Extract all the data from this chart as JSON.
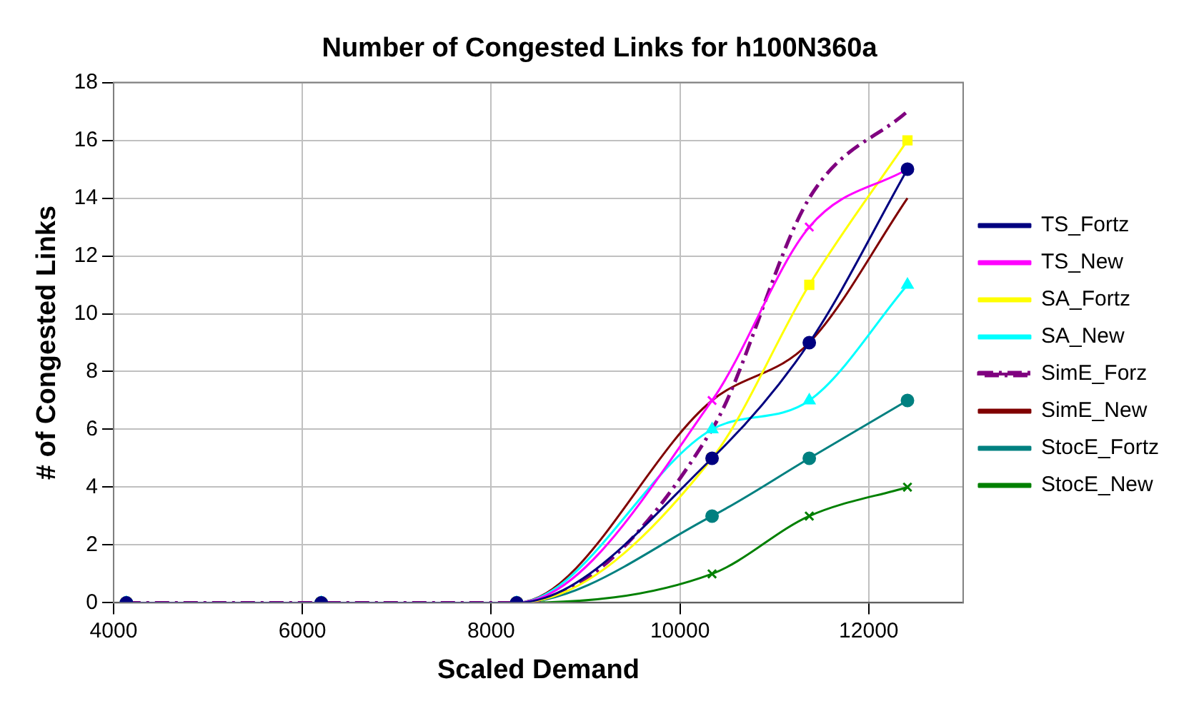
{
  "chart_data": {
    "type": "line",
    "title": "Number of Congested Links for h100N360a",
    "xlabel": "Scaled Demand",
    "ylabel": "# of Congested Links",
    "x": [
      4135,
      6200,
      8270,
      10340,
      11370,
      12410
    ],
    "xlim": [
      4000,
      13000
    ],
    "xticks": [
      4000,
      6000,
      8000,
      10000,
      12000
    ],
    "ylim": [
      0,
      18
    ],
    "yticks": [
      0,
      2,
      4,
      6,
      8,
      10,
      12,
      14,
      16,
      18
    ],
    "grid": true,
    "legend": "right",
    "series": [
      {
        "name": "TS_Fortz",
        "color": "#000080",
        "marker": "circle",
        "values": [
          0,
          0,
          0,
          5,
          9,
          15
        ]
      },
      {
        "name": "TS_New",
        "color": "#ff00ff",
        "marker": "cross",
        "values": [
          0,
          0,
          0,
          7,
          13,
          15
        ]
      },
      {
        "name": "SA_Fortz",
        "color": "#ffff00",
        "marker": "square",
        "values": [
          0,
          0,
          0,
          5,
          11,
          16
        ]
      },
      {
        "name": "SA_New",
        "color": "#00ffff",
        "marker": "triangle",
        "values": [
          0,
          0,
          0,
          6,
          7,
          11
        ]
      },
      {
        "name": "SimE_Forz",
        "color": "#800080",
        "marker": "none",
        "line_style": "dashdot",
        "values": [
          0,
          0,
          0,
          6,
          14,
          17
        ]
      },
      {
        "name": "SimE_New",
        "color": "#800000",
        "marker": "none",
        "values": [
          0,
          0,
          0,
          7,
          9,
          14
        ]
      },
      {
        "name": "StocE_Fortz",
        "color": "#008080",
        "marker": "circle",
        "values": [
          0,
          0,
          0,
          3,
          5,
          7
        ]
      },
      {
        "name": "StocE_New",
        "color": "#008000",
        "marker": "cross",
        "values": [
          0,
          0,
          0,
          1,
          3,
          4
        ]
      }
    ]
  }
}
